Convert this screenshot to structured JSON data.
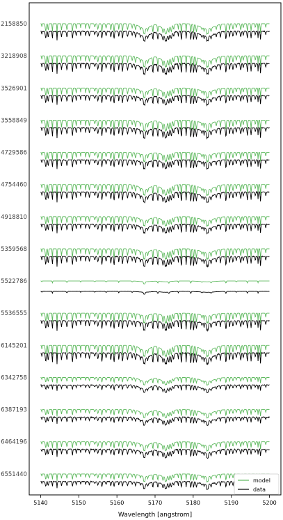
{
  "chart_data": {
    "type": "line",
    "xlabel": "Wavelength [angstrom]",
    "xlim": [
      5137,
      5203
    ],
    "x_ticks": [
      "5140",
      "5150",
      "5160",
      "5170",
      "5180",
      "5190",
      "5200"
    ],
    "star_ids": [
      "2158850",
      "3218908",
      "3526901",
      "3558849",
      "4729586",
      "4754460",
      "4918810",
      "5359568",
      "5522786",
      "5536555",
      "6145201",
      "6342758",
      "6387193",
      "6464196",
      "6551440"
    ],
    "series": [
      {
        "name": "model",
        "color": "#5cb85c"
      },
      {
        "name": "data",
        "color": "#000000"
      }
    ],
    "legend_position": "bottom-right",
    "major_absorption_lines": [
      5167.3,
      5172.7,
      5183.6
    ]
  }
}
